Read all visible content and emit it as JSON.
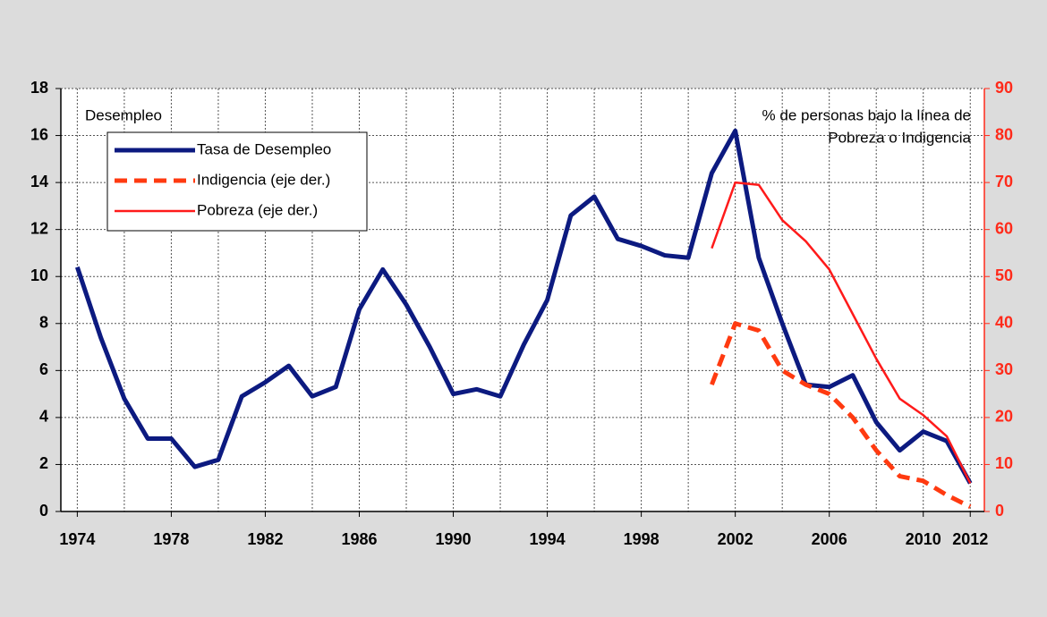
{
  "chart_data": {
    "type": "line",
    "ylabel": "Desempleo",
    "y2label": [
      "% de personas bajo la línea de",
      "Pobreza o Indigencia"
    ],
    "xlim": [
      1973.3,
      2012.6
    ],
    "xticks": [
      1974,
      1978,
      1982,
      1986,
      1990,
      1994,
      1998,
      2002,
      2006,
      2010,
      2012
    ],
    "xgrid_minor": [
      1976,
      1980,
      1984,
      1988,
      1992,
      1996,
      2000,
      2004,
      2008
    ],
    "ylim": [
      0,
      18
    ],
    "yticks": [
      0,
      2,
      4,
      6,
      8,
      10,
      12,
      14,
      16,
      18
    ],
    "y2lim": [
      0,
      90
    ],
    "y2ticks": [
      0,
      10,
      20,
      30,
      40,
      50,
      60,
      70,
      80,
      90
    ],
    "y2color": "#ff2a1a",
    "grid": true,
    "legend": "upper left",
    "series": [
      {
        "name": "Tasa de Desempleo",
        "color": "#0c1a80",
        "width": 5,
        "dash": "solid",
        "x": [
          1974,
          1975,
          1976,
          1977,
          1978,
          1979,
          1980,
          1981,
          1982,
          1983,
          1984,
          1985,
          1986,
          1987,
          1988,
          1989,
          1990,
          1991,
          1992,
          1993,
          1994,
          1995,
          1996,
          1997,
          1998,
          1999,
          2000,
          2001,
          2002,
          2003,
          2004,
          2005,
          2006,
          2007,
          2008,
          2009,
          2010,
          2011,
          2012
        ],
        "values": [
          10.4,
          7.4,
          4.8,
          3.1,
          3.1,
          1.9,
          2.2,
          4.9,
          5.5,
          6.2,
          4.9,
          5.3,
          8.6,
          10.3,
          8.8,
          7.0,
          5.0,
          5.2,
          4.9,
          7.1,
          9.0,
          12.6,
          13.4,
          11.6,
          11.3,
          10.9,
          10.8,
          14.4,
          16.2,
          10.8,
          8.0,
          5.4,
          5.3,
          5.8,
          3.8,
          2.6,
          3.4,
          3.0,
          1.2
        ]
      },
      {
        "name": "Indigencia (eje der.)",
        "color": "#ff3a10",
        "width": 5,
        "dash": "dashed",
        "axis": "y2",
        "x": [
          2001,
          2002,
          2003,
          2004,
          2005,
          2006,
          2007,
          2008,
          2009,
          2010,
          2011,
          2012
        ],
        "values": [
          27,
          40,
          38.5,
          30,
          27,
          25,
          20,
          13,
          7.5,
          6.5,
          3.5,
          1
        ]
      },
      {
        "name": "Pobreza (eje der.)",
        "color": "#ff1a1a",
        "width": 2.5,
        "dash": "solid",
        "axis": "y2",
        "x": [
          2001,
          2002,
          2003,
          2004,
          2005,
          2006,
          2007,
          2008,
          2009,
          2010,
          2011,
          2012
        ],
        "values": [
          56,
          70,
          69.5,
          62,
          57.5,
          51.5,
          42,
          32.5,
          24,
          20.5,
          16,
          6
        ]
      }
    ]
  }
}
